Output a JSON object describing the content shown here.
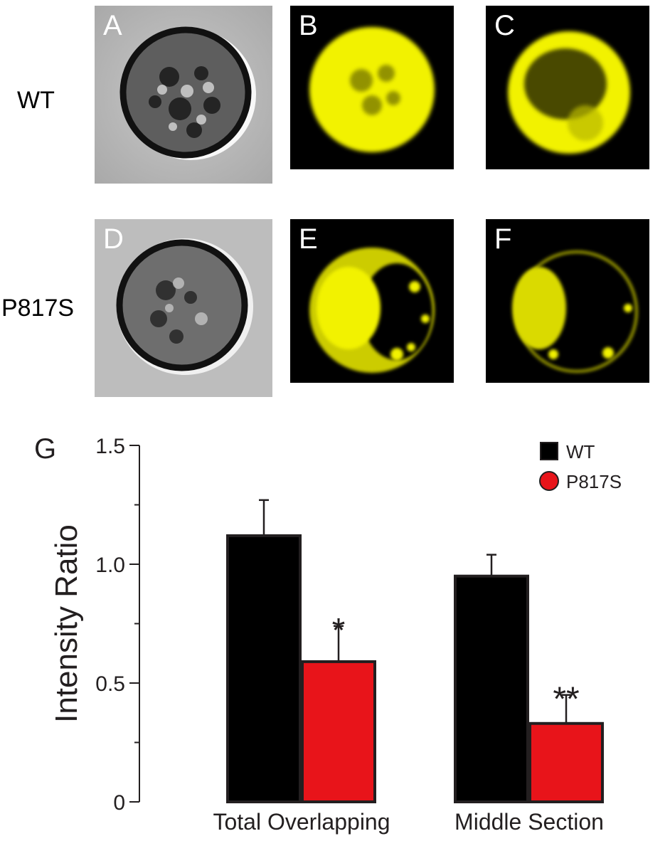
{
  "row_labels": [
    "WT",
    "P817S"
  ],
  "panels": [
    {
      "letter": "A",
      "kind": "brightfield",
      "row": "WT"
    },
    {
      "letter": "B",
      "kind": "fluorescence",
      "row": "WT"
    },
    {
      "letter": "C",
      "kind": "fluorescence",
      "row": "WT"
    },
    {
      "letter": "D",
      "kind": "brightfield",
      "row": "P817S"
    },
    {
      "letter": "E",
      "kind": "fluorescence",
      "row": "P817S"
    },
    {
      "letter": "F",
      "kind": "fluorescence",
      "row": "P817S"
    }
  ],
  "colors": {
    "fluor": "#f2f200",
    "wt": "#000000",
    "mut": "#e8141a"
  },
  "chart_data": {
    "type": "bar",
    "panel_letter": "G",
    "categories": [
      "Total Overlapping",
      "Middle Section"
    ],
    "series": [
      {
        "name": "WT",
        "values": [
          1.12,
          0.95
        ],
        "errors": [
          0.15,
          0.09
        ],
        "color": "#000000"
      },
      {
        "name": "P817S",
        "values": [
          0.59,
          0.33
        ],
        "errors": [
          0.15,
          0.12
        ],
        "color": "#e8141a"
      }
    ],
    "significance": [
      "*",
      "**"
    ],
    "ylabel": "Intensity Ratio",
    "ylim": [
      0,
      1.5
    ],
    "yticks": [
      0,
      0.5,
      1.0,
      1.5
    ],
    "ytick_labels": [
      "0",
      "0.5",
      "1.0",
      "1.5"
    ],
    "legend_position": "top-right",
    "grid": false
  }
}
